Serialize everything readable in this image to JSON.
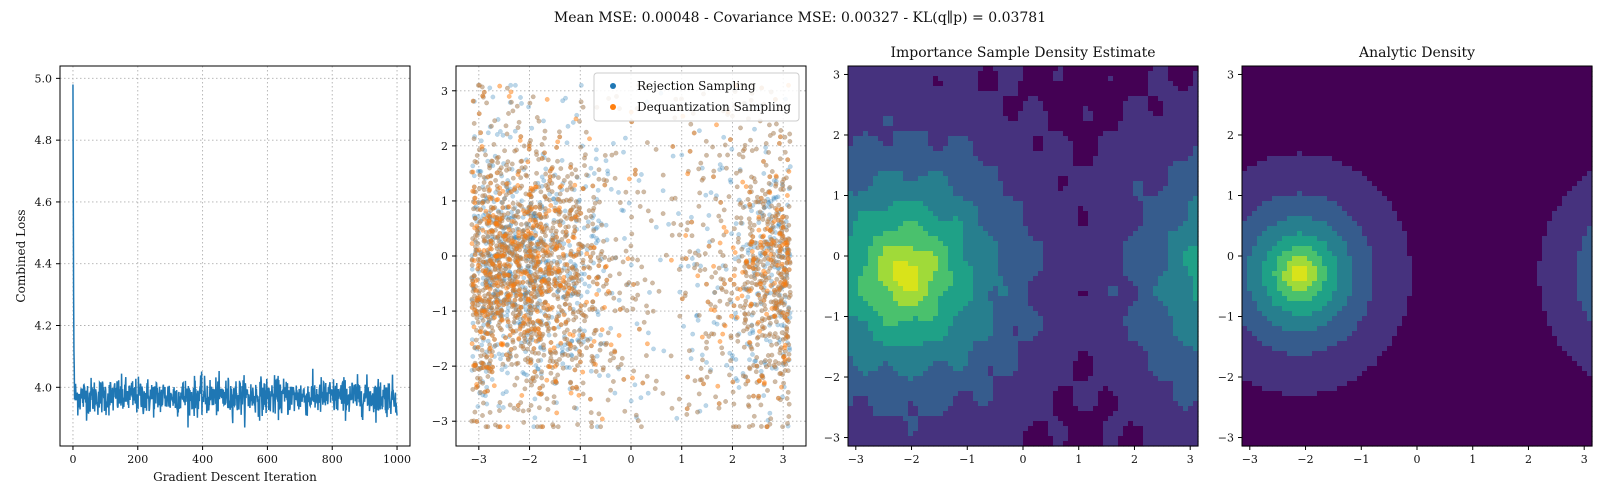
{
  "figure": {
    "suptitle": "Mean MSE: 0.00048 - Covariance MSE: 0.00327 - KL(q∥p) = 0.03781"
  },
  "colors": {
    "loss_line": "#1f77b4",
    "rejection": "#1f77b4",
    "dequantization": "#ff7f0e",
    "grid": "#b0b0b0",
    "viridis_levels": [
      "#440154",
      "#46327e",
      "#365c8d",
      "#277f8e",
      "#1fa187",
      "#4ac16d",
      "#a0da39",
      "#d9e31a"
    ]
  },
  "chart_data": [
    {
      "type": "line",
      "title": "",
      "xlabel": "Gradient Descent Iteration",
      "ylabel": "Combined Loss",
      "xlim": [
        -40,
        1040
      ],
      "ylim": [
        3.81,
        5.04
      ],
      "xticks": [
        "0",
        "200",
        "400",
        "600",
        "800",
        "1000"
      ],
      "yticks": [
        "4.0",
        "4.2",
        "4.4",
        "4.6",
        "4.8",
        "5.0"
      ],
      "grid": true,
      "series": [
        {
          "description": "noisy loss curve",
          "x_range": [
            0,
            1000
          ],
          "n_points": 1000,
          "initial_value": 4.98,
          "spike_points": [
            [
              0,
              4.98
            ],
            [
              1,
              4.62
            ],
            [
              2,
              4.3
            ],
            [
              3,
              4.12
            ],
            [
              4,
              4.06
            ]
          ],
          "plateau_mean": 3.97,
          "plateau_noise": 0.035,
          "plateau_min": 3.87,
          "plateau_max": 4.06
        }
      ]
    },
    {
      "type": "scatter",
      "title": "",
      "xlim": [
        -3.45,
        3.45
      ],
      "ylim": [
        -3.45,
        3.45
      ],
      "xticks": [
        "−3",
        "−2",
        "−1",
        "0",
        "1",
        "2",
        "3"
      ],
      "yticks": [
        "−3",
        "−2",
        "−1",
        "0",
        "1",
        "2",
        "3"
      ],
      "grid": true,
      "legend_position": "top-right",
      "series": [
        {
          "name": "Rejection Sampling",
          "n_points": 2800,
          "alpha": 0.3
        },
        {
          "name": "Dequantization Sampling",
          "n_points": 2800,
          "alpha": 0.3
        }
      ],
      "density_modes": [
        {
          "x": -2.1,
          "y": -0.3,
          "weight": 0.62
        },
        {
          "x": 3.0,
          "y": -0.3,
          "weight": 0.38
        }
      ]
    },
    {
      "type": "heatmap",
      "title": "Importance Sample Density Estimate",
      "xlim": [
        -3.14,
        3.14
      ],
      "ylim": [
        -3.14,
        3.14
      ],
      "xticks": [
        "−3",
        "−2",
        "−1",
        "0",
        "1",
        "2",
        "3"
      ],
      "yticks": [
        "−3",
        "−2",
        "−1",
        "0",
        "1",
        "2",
        "3"
      ],
      "filled_levels": 8,
      "estimate": true
    },
    {
      "type": "heatmap",
      "title": "Analytic Density",
      "xlim": [
        -3.14,
        3.14
      ],
      "ylim": [
        -3.14,
        3.14
      ],
      "xticks": [
        "−3",
        "−2",
        "−1",
        "0",
        "1",
        "2",
        "3"
      ],
      "yticks": [
        "−3",
        "−2",
        "−1",
        "0",
        "1",
        "2",
        "3"
      ],
      "filled_levels": 8,
      "estimate": false,
      "peak": {
        "x": -2.1,
        "y": -0.3
      }
    }
  ]
}
